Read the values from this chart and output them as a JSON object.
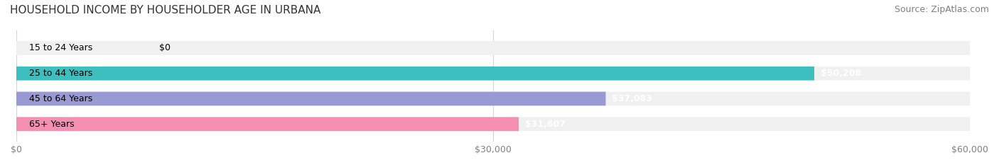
{
  "title": "HOUSEHOLD INCOME BY HOUSEHOLDER AGE IN URBANA",
  "source": "Source: ZipAtlas.com",
  "categories": [
    "15 to 24 Years",
    "25 to 44 Years",
    "45 to 64 Years",
    "65+ Years"
  ],
  "values": [
    0,
    50208,
    37083,
    31607
  ],
  "bar_colors": [
    "#c9a8d4",
    "#3dbfbf",
    "#9999d4",
    "#f48fb1"
  ],
  "bar_bg_color": "#f0f0f0",
  "value_labels": [
    "$0",
    "$50,208",
    "$37,083",
    "$31,607"
  ],
  "xlim": [
    0,
    60000
  ],
  "xticks": [
    0,
    30000,
    60000
  ],
  "xtick_labels": [
    "$0",
    "$30,000",
    "$60,000"
  ],
  "title_fontsize": 11,
  "source_fontsize": 9,
  "label_fontsize": 9,
  "bar_height": 0.55,
  "figsize": [
    14.06,
    2.33
  ],
  "dpi": 100
}
